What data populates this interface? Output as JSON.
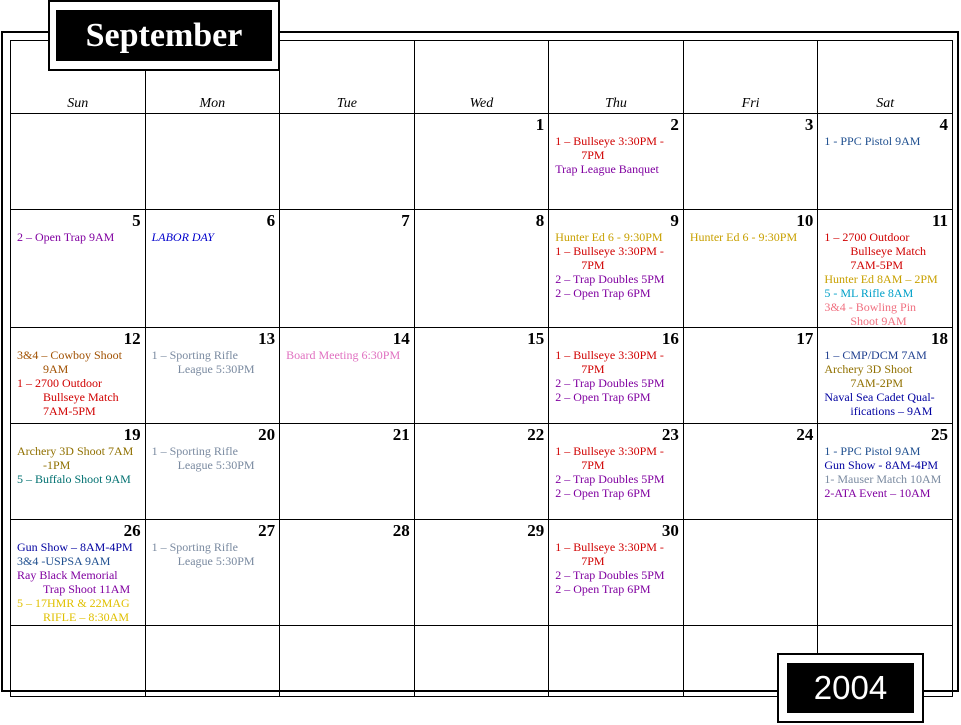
{
  "title": {
    "month": "September",
    "year": "2004"
  },
  "weekdays": [
    "Sun",
    "Mon",
    "Tue",
    "Wed",
    "Thu",
    "Fri",
    "Sat"
  ],
  "weeks": [
    [
      {
        "day": "",
        "events": []
      },
      {
        "day": "",
        "events": []
      },
      {
        "day": "",
        "events": []
      },
      {
        "day": "1",
        "events": []
      },
      {
        "day": "2",
        "events": [
          {
            "lines": [
              "1 – Bullseye 3:30PM -",
              "7PM"
            ],
            "color": "#d00000"
          },
          {
            "lines": [
              "Trap League Banquet"
            ],
            "color": "#8000a0"
          }
        ]
      },
      {
        "day": "3",
        "events": []
      },
      {
        "day": "4",
        "events": [
          {
            "lines": [
              "1 -  PPC Pistol  9AM"
            ],
            "color": "#1f4f8f"
          }
        ]
      }
    ],
    [
      {
        "day": "5",
        "events": [
          {
            "lines": [
              "2 – Open Trap  9AM"
            ],
            "color": "#8000a0"
          }
        ]
      },
      {
        "day": "6",
        "events": [
          {
            "lines": [
              "LABOR DAY"
            ],
            "color": "#0000cc",
            "italic": true
          }
        ]
      },
      {
        "day": "7",
        "events": []
      },
      {
        "day": "8",
        "events": []
      },
      {
        "day": "9",
        "events": [
          {
            "lines": [
              "Hunter Ed  6 - 9:30PM"
            ],
            "color": "#c8a000"
          },
          {
            "lines": [
              "1 – Bullseye 3:30PM -",
              "7PM"
            ],
            "color": "#d00000"
          },
          {
            "lines": [
              "2 – Trap Doubles 5PM"
            ],
            "color": "#8000a0"
          },
          {
            "lines": [
              "2 – Open Trap 6PM"
            ],
            "color": "#8000a0"
          }
        ]
      },
      {
        "day": "10",
        "events": [
          {
            "lines": [
              "Hunter Ed  6 - 9:30PM"
            ],
            "color": "#c8a000"
          }
        ]
      },
      {
        "day": "11",
        "events": [
          {
            "lines": [
              "1 – 2700 Outdoor",
              "Bullseye Match",
              "7AM-5PM"
            ],
            "color": "#d00000"
          },
          {
            "lines": [
              "Hunter Ed  8AM – 2PM"
            ],
            "color": "#c8a000"
          },
          {
            "lines": [
              "5 -  ML Rifle 8AM"
            ],
            "color": "#00a0c8"
          },
          {
            "lines": [
              "3&4 - Bowling Pin",
              "Shoot 9AM"
            ],
            "color": "#f07080"
          }
        ]
      }
    ],
    [
      {
        "day": "12",
        "events": [
          {
            "lines": [
              "3&4 – Cowboy Shoot",
              "9AM"
            ],
            "color": "#a05000"
          },
          {
            "lines": [
              "1 – 2700 Outdoor",
              "Bullseye Match",
              "7AM-5PM"
            ],
            "color": "#d00000"
          }
        ]
      },
      {
        "day": "13",
        "events": [
          {
            "lines": [
              "1 – Sporting Rifle",
              "League  5:30PM"
            ],
            "color": "#7a8aa0"
          }
        ]
      },
      {
        "day": "14",
        "events": [
          {
            "lines": [
              "Board Meeting  6:30PM"
            ],
            "color": "#e070c0"
          }
        ]
      },
      {
        "day": "15",
        "events": []
      },
      {
        "day": "16",
        "events": [
          {
            "lines": [
              "1 – Bullseye 3:30PM -",
              "7PM"
            ],
            "color": "#d00000"
          },
          {
            "lines": [
              "2 – Trap Doubles 5PM"
            ],
            "color": "#8000a0"
          },
          {
            "lines": [
              "2 – Open Trap 6PM"
            ],
            "color": "#8000a0"
          }
        ]
      },
      {
        "day": "17",
        "events": []
      },
      {
        "day": "18",
        "events": [
          {
            "lines": [
              "1 – CMP/DCM  7AM"
            ],
            "color": "#1f3f8f"
          },
          {
            "lines": [
              "Archery 3D Shoot",
              "7AM-2PM"
            ],
            "color": "#907000"
          },
          {
            "lines": [
              "Naval Sea Cadet Qual-",
              "ifications – 9AM"
            ],
            "color": "#0000a0"
          }
        ]
      }
    ],
    [
      {
        "day": "19",
        "events": [
          {
            "lines": [
              "Archery 3D Shoot 7AM",
              "-1PM"
            ],
            "color": "#907000"
          },
          {
            "lines": [
              "5 – Buffalo Shoot  9AM"
            ],
            "color": "#007070"
          }
        ]
      },
      {
        "day": "20",
        "events": [
          {
            "lines": [
              "1 – Sporting Rifle",
              "League  5:30PM"
            ],
            "color": "#7a8aa0"
          }
        ]
      },
      {
        "day": "21",
        "events": []
      },
      {
        "day": "22",
        "events": []
      },
      {
        "day": "23",
        "events": [
          {
            "lines": [
              "1 – Bullseye 3:30PM -",
              "7PM"
            ],
            "color": "#d00000"
          },
          {
            "lines": [
              "2 – Trap Doubles 5PM"
            ],
            "color": "#8000a0"
          },
          {
            "lines": [
              "2 – Open Trap 6PM"
            ],
            "color": "#8000a0"
          }
        ]
      },
      {
        "day": "24",
        "events": []
      },
      {
        "day": "25",
        "events": [
          {
            "lines": [
              "1 -  PPC Pistol  9AM"
            ],
            "color": "#1f4f8f"
          },
          {
            "lines": [
              "Gun Show - 8AM-4PM"
            ],
            "color": "#0000a0"
          },
          {
            "lines": [
              "1- Mauser Match 10AM"
            ],
            "color": "#7a8aa0"
          },
          {
            "lines": [
              "2-ATA Event – 10AM"
            ],
            "color": "#8000a0"
          }
        ]
      }
    ],
    [
      {
        "day": "26",
        "events": [
          {
            "lines": [
              "Gun Show – 8AM-4PM"
            ],
            "color": "#0000a0"
          },
          {
            "lines": [
              "3&4 -USPSA  9AM"
            ],
            "color": "#1f4f8f"
          },
          {
            "lines": [
              "Ray Black Memorial",
              "Trap Shoot 11AM"
            ],
            "color": "#8000a0"
          },
          {
            "lines": [
              "5 – 17HMR & 22MAG",
              "RIFLE – 8:30AM"
            ],
            "color": "#e0c000"
          }
        ]
      },
      {
        "day": "27",
        "events": [
          {
            "lines": [
              "1 – Sporting Rifle",
              "League  5:30PM"
            ],
            "color": "#7a8aa0"
          }
        ]
      },
      {
        "day": "28",
        "events": []
      },
      {
        "day": "29",
        "events": []
      },
      {
        "day": "30",
        "events": [
          {
            "lines": [
              "1 – Bullseye 3:30PM -",
              "7PM"
            ],
            "color": "#d00000"
          },
          {
            "lines": [
              "2 – Trap Doubles 5PM"
            ],
            "color": "#8000a0"
          },
          {
            "lines": [
              "2 – Open Trap 6PM"
            ],
            "color": "#8000a0"
          }
        ]
      },
      {
        "day": "",
        "events": []
      },
      {
        "day": "",
        "events": []
      }
    ],
    [
      {
        "day": "",
        "events": []
      },
      {
        "day": "",
        "events": []
      },
      {
        "day": "",
        "events": []
      },
      {
        "day": "",
        "events": []
      },
      {
        "day": "",
        "events": []
      },
      {
        "day": "",
        "events": []
      },
      {
        "day": "",
        "events": []
      }
    ]
  ]
}
